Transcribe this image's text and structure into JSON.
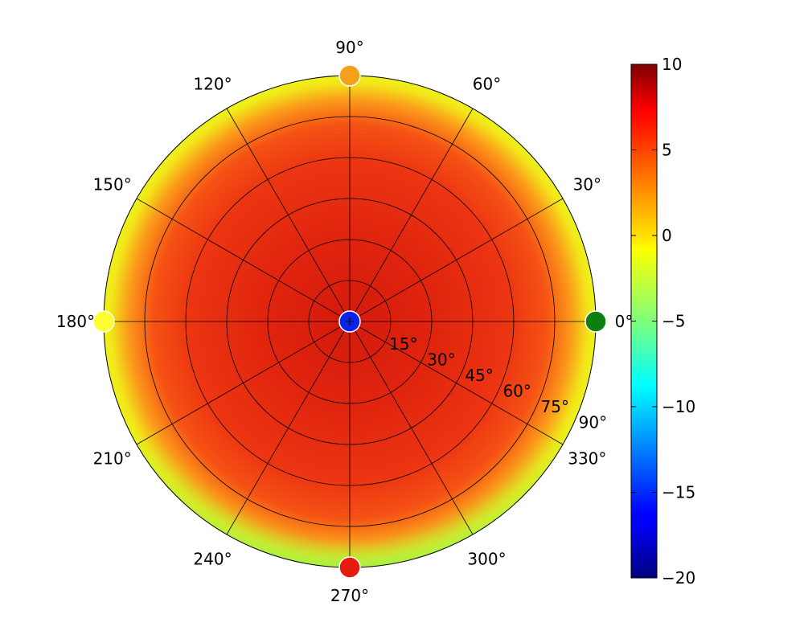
{
  "chart_data": {
    "type": "heatmap",
    "projection": "polar",
    "angle_ticks_deg": [
      0,
      30,
      60,
      90,
      120,
      150,
      180,
      210,
      240,
      270,
      300,
      330
    ],
    "angle_tick_labels": [
      "0°",
      "30°",
      "60°",
      "90°",
      "120°",
      "150°",
      "180°",
      "210°",
      "240°",
      "270°",
      "300°",
      "330°"
    ],
    "radial_ticks": [
      15,
      30,
      45,
      60,
      75,
      90
    ],
    "radial_tick_labels": [
      "15°",
      "30°",
      "45°",
      "60°",
      "75°",
      "90°"
    ],
    "rlim": [
      0,
      90
    ],
    "grid": true,
    "colormap": "jet",
    "value_range": [
      -20,
      10
    ],
    "colorbar": {
      "location": "right",
      "ticks": [
        10,
        5,
        0,
        -5,
        -10,
        -15,
        -20
      ],
      "tick_labels": [
        "10",
        "5",
        "0",
        "−5",
        "−10",
        "−15",
        "−20"
      ]
    },
    "approx_field": {
      "description_values_by_radius": [
        {
          "r": 0,
          "value": 8.5
        },
        {
          "r": 30,
          "value": 8.0
        },
        {
          "r": 60,
          "value": 7.0
        },
        {
          "r": 75,
          "value": 5.0
        },
        {
          "r": 85,
          "value": 2.0
        },
        {
          "r": 90,
          "value": 0.0
        }
      ],
      "lower_edge_value": -3
    },
    "markers": [
      {
        "name": "center",
        "theta": 0,
        "r": 0,
        "color": "#0a22e6"
      },
      {
        "name": "east",
        "theta": 0,
        "r": 90,
        "color": "#0c7f0c"
      },
      {
        "name": "north",
        "theta": 90,
        "r": 90,
        "color": "#f5a01a"
      },
      {
        "name": "west",
        "theta": 180,
        "r": 90,
        "color": "#ffff33"
      },
      {
        "name": "south",
        "theta": 270,
        "r": 90,
        "color": "#e61a0f"
      }
    ]
  }
}
